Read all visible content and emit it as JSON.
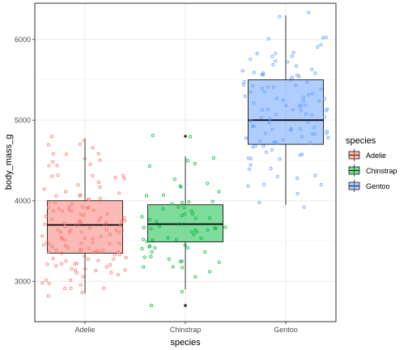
{
  "chart_data": {
    "type": "boxplot",
    "xlabel": "species",
    "ylabel": "body_mass_g",
    "ylim": [
      2500,
      6450
    ],
    "y_ticks": [
      3000,
      4000,
      5000,
      6000
    ],
    "y_tick_labels": [
      "3000",
      "4000",
      "5000",
      "6000"
    ],
    "categories": [
      "Adelie",
      "Chinstrap",
      "Gentoo"
    ],
    "grid": true,
    "legend": {
      "title": "species",
      "position": "right",
      "labels": [
        "Adelie",
        "Chinstrap",
        "Gentoo"
      ]
    },
    "series": [
      {
        "name": "Adelie",
        "color": "#F8766D",
        "fill": "#F8766D",
        "box": {
          "lower_whisker": 2850,
          "q1": 3350,
          "median": 3700,
          "q3": 4000,
          "upper_whisker": 4775
        },
        "outliers": [],
        "points": [
          4750,
          4775,
          4700,
          4725,
          4650,
          4600,
          4550,
          4500,
          4475,
          4450,
          4400,
          4350,
          4300,
          4250,
          4200,
          4150,
          4100,
          4050,
          4000,
          4000,
          3950,
          3950,
          3900,
          3900,
          3875,
          3850,
          3850,
          3800,
          3800,
          3800,
          3775,
          3750,
          3750,
          3725,
          3700,
          3700,
          3700,
          3675,
          3650,
          3650,
          3625,
          3600,
          3600,
          3575,
          3550,
          3550,
          3525,
          3500,
          3500,
          3475,
          3450,
          3450,
          3425,
          3400,
          3400,
          3375,
          3350,
          3325,
          3300,
          3300,
          3275,
          3250,
          3200,
          3200,
          3175,
          3150,
          3100,
          3075,
          3050,
          3000,
          2975,
          2950,
          2925,
          2900,
          2850,
          4400,
          4300,
          4150,
          4050,
          3950,
          3900,
          3800,
          3750,
          3700,
          3650,
          3600,
          3550,
          3500,
          3450,
          3400,
          3350,
          3300,
          3250,
          3200,
          3150,
          3100,
          3000,
          2900,
          4200,
          4000,
          3900,
          3850,
          3750,
          3700,
          3650,
          3550,
          3450,
          3350,
          3250,
          3150,
          4100,
          3950,
          3800,
          3700,
          3600,
          3500,
          3400,
          3300,
          3200,
          3100,
          4500,
          4250,
          4000,
          3850,
          3700,
          3550,
          3400,
          3250,
          3100,
          2950,
          4600,
          4350,
          4100,
          3900,
          3750,
          3600,
          3450,
          3300,
          3150,
          3000
        ]
      },
      {
        "name": "Chinstrap",
        "color": "#00BA38",
        "fill": "#00BA38",
        "box": {
          "lower_whisker": 2900,
          "q1": 3490,
          "median": 3710,
          "q3": 3950,
          "upper_whisker": 4550
        },
        "outliers": [
          4800,
          2700
        ],
        "points": [
          4800,
          4800,
          4550,
          4500,
          4450,
          4400,
          4300,
          4250,
          4200,
          4150,
          4100,
          4050,
          4050,
          4000,
          4000,
          3950,
          3950,
          3900,
          3900,
          3850,
          3850,
          3800,
          3800,
          3775,
          3750,
          3750,
          3725,
          3700,
          3700,
          3700,
          3675,
          3650,
          3650,
          3600,
          3600,
          3575,
          3550,
          3550,
          3500,
          3500,
          3475,
          3450,
          3450,
          3425,
          3400,
          3400,
          3350,
          3300,
          3300,
          3250,
          3250,
          3200,
          3150,
          3100,
          3050,
          2900,
          2700,
          3900,
          3800,
          3700,
          3650,
          3600,
          3500,
          3400,
          3350,
          3300,
          3250,
          3200
        ]
      },
      {
        "name": "Gentoo",
        "color": "#619CFF",
        "fill": "#619CFF",
        "box": {
          "lower_whisker": 3950,
          "q1": 4700,
          "median": 5000,
          "q3": 5500,
          "upper_whisker": 6300
        },
        "outliers": [],
        "points": [
          6300,
          6300,
          6050,
          6000,
          6000,
          5950,
          5900,
          5850,
          5850,
          5800,
          5800,
          5750,
          5700,
          5700,
          5650,
          5650,
          5600,
          5600,
          5550,
          5550,
          5550,
          5500,
          5500,
          5450,
          5450,
          5400,
          5400,
          5400,
          5350,
          5350,
          5300,
          5300,
          5250,
          5250,
          5200,
          5200,
          5200,
          5150,
          5150,
          5100,
          5100,
          5050,
          5050,
          5000,
          5000,
          5000,
          4950,
          4950,
          4900,
          4900,
          4875,
          4850,
          4850,
          4800,
          4800,
          4750,
          4750,
          4700,
          4700,
          4650,
          4650,
          4600,
          4600,
          4550,
          4500,
          4450,
          4400,
          4400,
          4350,
          4300,
          4250,
          4200,
          4200,
          4150,
          4100,
          4000,
          3950,
          5700,
          5550,
          5400,
          5300,
          5200,
          5100,
          5000,
          4900,
          4800,
          4700,
          4600,
          4500,
          5600,
          5450,
          5350,
          5250,
          5150,
          5050,
          4950,
          4850,
          4750,
          4650,
          4550,
          5500,
          5300,
          5100,
          4900,
          4700,
          5800,
          5600,
          5400,
          5200,
          5000,
          4800
        ]
      }
    ]
  }
}
